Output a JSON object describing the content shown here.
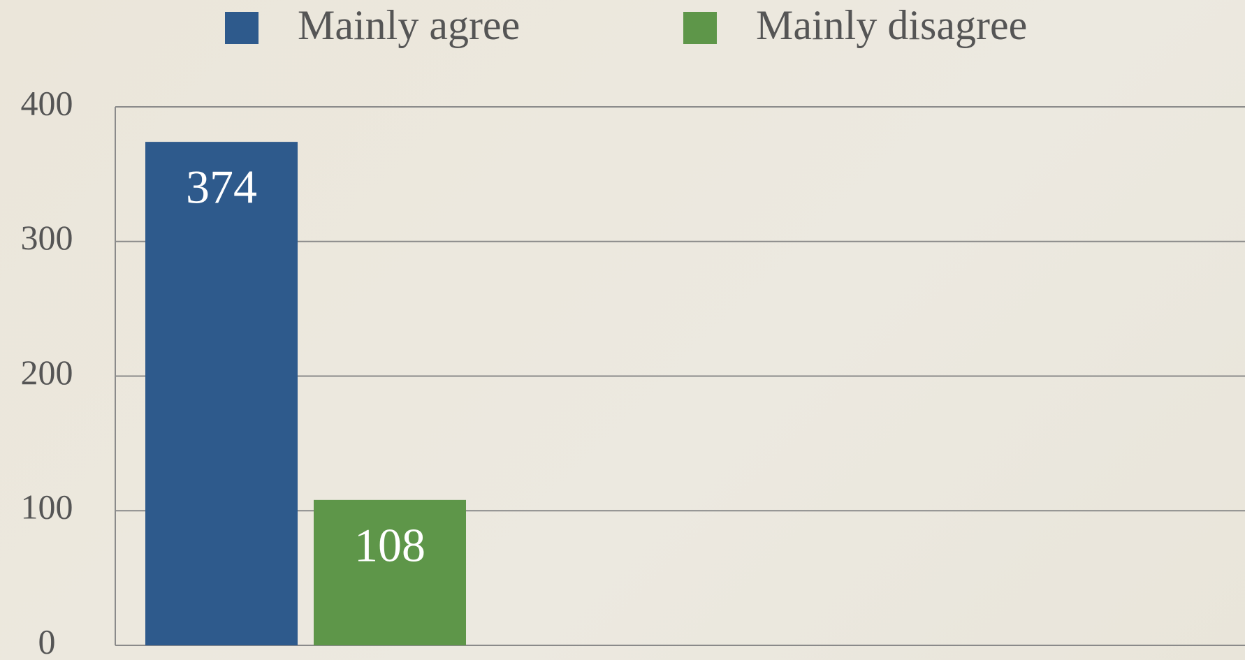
{
  "chart_data": {
    "type": "bar",
    "categories": [
      null
    ],
    "series": [
      {
        "name": "Mainly agree",
        "color": "#2e5a8c",
        "values": [
          374
        ]
      },
      {
        "name": "Mainly disagree",
        "color": "#5e9649",
        "values": [
          108
        ]
      }
    ],
    "ylim": [
      0,
      400
    ],
    "yticks": [
      0,
      100,
      200,
      300,
      400
    ],
    "grid": true,
    "legend": "top"
  }
}
